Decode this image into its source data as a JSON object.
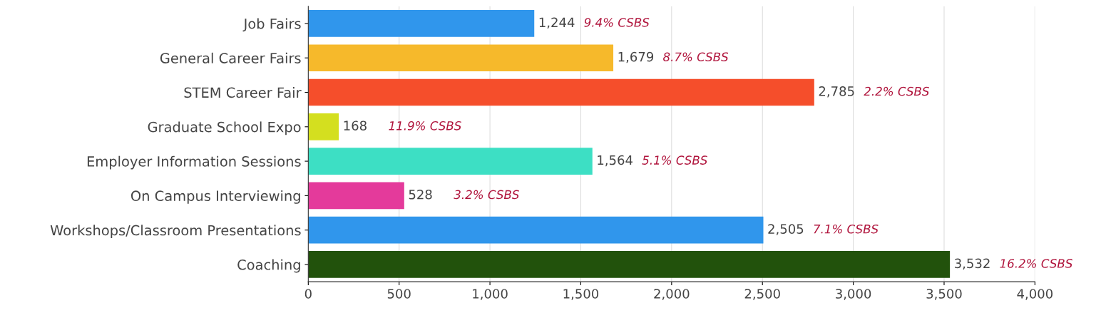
{
  "chart_data": {
    "type": "bar",
    "orientation": "horizontal",
    "categories": [
      "Job Fairs",
      "General Career Fairs",
      "STEM Career Fair",
      "Graduate School Expo",
      "Employer Information Sessions",
      "On Campus Interviewing",
      "Workshops/Classroom Presentations",
      "Coaching"
    ],
    "values": [
      1244,
      1679,
      2785,
      168,
      1564,
      528,
      2505,
      3532
    ],
    "value_labels": [
      "1,244",
      "1,679",
      "2,785",
      "168",
      "1,564",
      "528",
      "2,505",
      "3,532"
    ],
    "colors": [
      "#3096ec",
      "#f6b92b",
      "#f54e2b",
      "#d4df1f",
      "#3ddfc4",
      "#e43a9b",
      "#3096ec",
      "#22520c"
    ],
    "xlim": [
      0,
      4000
    ],
    "xticks": [
      0,
      500,
      {
        "value": 1000,
        "label": "1,000"
      },
      {
        "value": 1500,
        "label": "1,500"
      },
      {
        "value": 2000,
        "label": "2,000"
      },
      {
        "value": 2500,
        "label": "2,500"
      },
      {
        "value": 3000,
        "label": "3,000"
      },
      {
        "value": 3500,
        "label": "3,500"
      },
      {
        "value": 4000,
        "label": "4,000"
      }
    ],
    "grid": "x",
    "legend": false,
    "annotations": [
      "9.4% CSBS",
      "8.7% CSBS",
      "2.2% CSBS",
      "11.9% CSBS",
      "5.1% CSBS",
      "3.2% CSBS",
      "7.1% CSBS",
      "16.2% CSBS"
    ]
  }
}
